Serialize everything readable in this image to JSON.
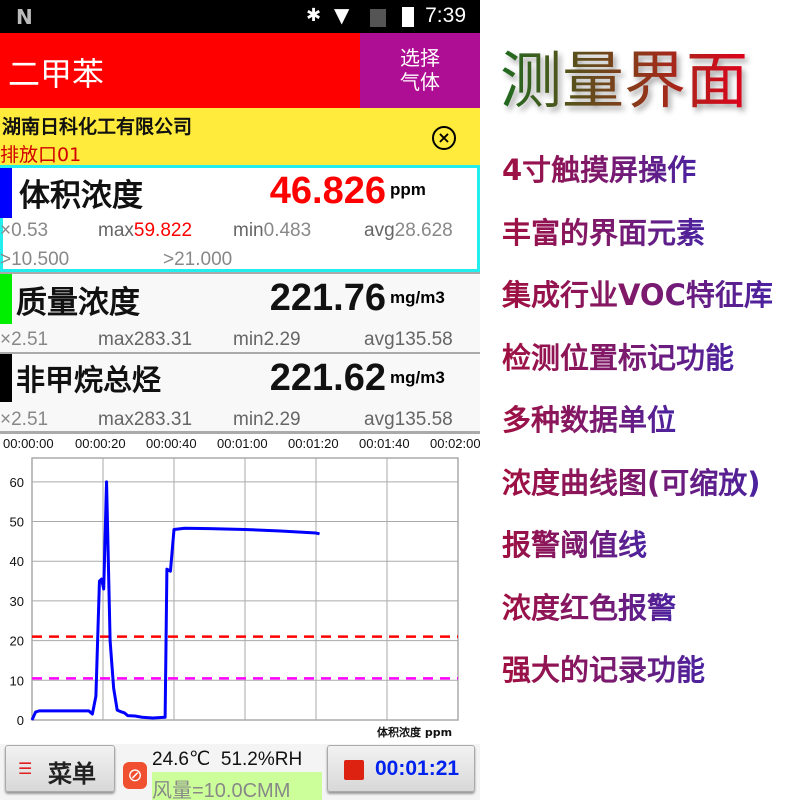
{
  "status_bar": {
    "time": "7:39",
    "icons": [
      "n-logo-icon",
      "bluetooth-icon",
      "wifi-icon",
      "no-sim-icon",
      "battery-charging-icon"
    ]
  },
  "header": {
    "gas_name": "二甲苯",
    "select_gas_label": [
      "选择",
      "气体"
    ],
    "color": "#ff0000",
    "select_color": "#ae0e93"
  },
  "site": {
    "company": "湖南日科化工有限公司",
    "outlet": "排放口01"
  },
  "channels": [
    {
      "name": "体积浓度",
      "value": "46.826",
      "unit": "ppm",
      "factor": "×0.53",
      "max_label": "max",
      "max": "59.822",
      "min_label": "min",
      "min": "0.483",
      "avg_label": "avg",
      "avg": "28.628",
      "alarm_low": ">10.500",
      "alarm_high": ">21.000",
      "color": "#0000ff",
      "alarm": true
    },
    {
      "name": "质量浓度",
      "value": "221.76",
      "unit": "mg/m3",
      "factor": "×2.51",
      "max_label": "max",
      "max": "283.31",
      "min_label": "min",
      "min": "2.29",
      "avg_label": "avg",
      "avg": "135.58",
      "color": "#00ee00"
    },
    {
      "name": "非甲烷总烃",
      "value": "221.62",
      "unit": "mg/m3",
      "factor": "×2.51",
      "max_label": "max",
      "max": "283.31",
      "min_label": "min",
      "min": "2.29",
      "avg_label": "avg",
      "avg": "135.58",
      "color": "#000000"
    }
  ],
  "chart_data": {
    "type": "line",
    "x_tick_labels": [
      "00:00:00",
      "00:00:20",
      "00:00:40",
      "00:01:00",
      "00:01:20",
      "00:01:40",
      "00:02:00"
    ],
    "y_tick_labels": [
      "0",
      "10",
      "20",
      "30",
      "40",
      "50",
      "60"
    ],
    "xlim": [
      0,
      120
    ],
    "ylim": [
      0,
      66
    ],
    "grid": true,
    "legend": "体积浓度 ppm",
    "series": [
      {
        "color": "#0000ff",
        "points": [
          [
            0,
            0
          ],
          [
            1,
            2
          ],
          [
            2,
            2.3
          ],
          [
            8,
            2.3
          ],
          [
            16,
            2.3
          ],
          [
            17,
            1.5
          ],
          [
            18,
            6
          ],
          [
            19,
            35
          ],
          [
            19.6,
            35.5
          ],
          [
            20.2,
            33
          ],
          [
            21,
            60
          ],
          [
            22,
            20
          ],
          [
            23,
            8
          ],
          [
            24,
            2.5
          ],
          [
            25,
            2.1
          ],
          [
            26,
            1.8
          ],
          [
            27,
            1.1
          ],
          [
            29,
            1
          ],
          [
            31,
            0.7
          ],
          [
            34,
            0.5
          ],
          [
            37.5,
            0.7
          ],
          [
            38,
            38
          ],
          [
            39,
            37.5
          ],
          [
            40,
            48
          ],
          [
            43,
            48.3
          ],
          [
            50,
            48.2
          ],
          [
            60,
            48
          ],
          [
            70,
            47.6
          ],
          [
            80,
            47.1
          ],
          [
            81,
            46.9
          ]
        ]
      }
    ],
    "thresholds": [
      {
        "value": 21,
        "color": "#ff0000"
      },
      {
        "value": 10.5,
        "color": "#ff00ff"
      }
    ]
  },
  "footer": {
    "menu_label": "菜单",
    "env": "24.6℃  51.2%RH",
    "airflow": "风量=10.0CMM",
    "timer": "00:01:21"
  },
  "promo": {
    "title": "测量界面",
    "features": [
      "4寸触摸屏操作",
      "丰富的界面元素",
      "集成行业VOC特征库",
      "检测位置标记功能",
      "多种数据单位",
      "浓度曲线图(可缩放)",
      "报警阈值线",
      "浓度红色报警",
      "强大的记录功能"
    ]
  }
}
